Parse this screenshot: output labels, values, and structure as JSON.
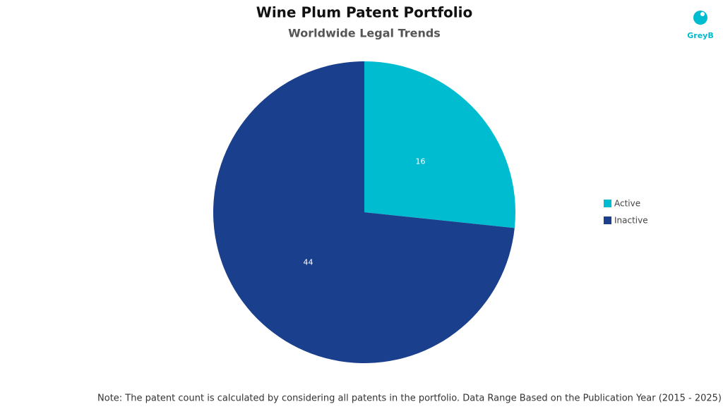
{
  "chart_data": {
    "type": "pie",
    "title": "Wine Plum Patent Portfolio",
    "subtitle": "Worldwide Legal Trends",
    "categories": [
      "Active",
      "Inactive"
    ],
    "values": [
      16,
      44
    ],
    "colors": [
      "#00bcd0",
      "#1a3f8c"
    ],
    "legend": "right",
    "note": "Note: The patent count is calculated by considering all patents in the portfolio. Data Range Based on the Publication Year (2015 - 2025)"
  },
  "logo": "GreyB"
}
